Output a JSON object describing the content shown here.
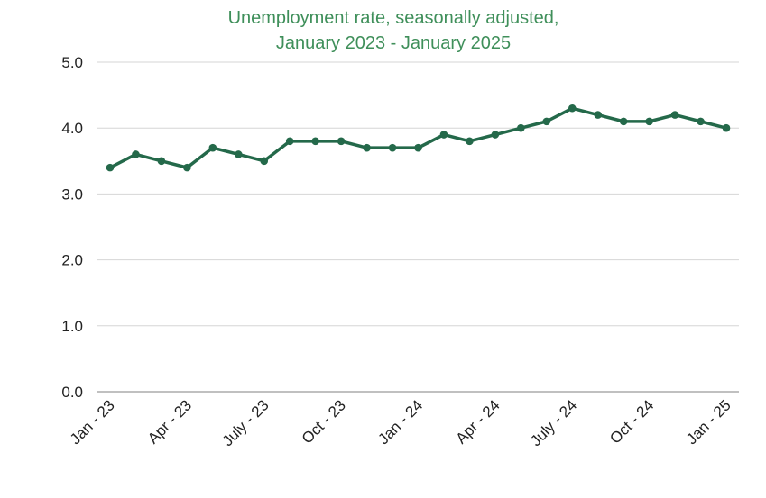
{
  "chart_data": {
    "type": "line",
    "title": "Unemployment rate, seasonally adjusted,",
    "subtitle": "January 2023 - January 2025",
    "xlabel": "",
    "ylabel": "",
    "ylim": [
      0,
      5
    ],
    "yticks": [
      "0.0",
      "1.0",
      "2.0",
      "3.0",
      "4.0",
      "5.0"
    ],
    "grid": true,
    "color": "#24694a",
    "x": [
      "Jan 2023",
      "Feb 2023",
      "Mar 2023",
      "Apr 2023",
      "May 2023",
      "Jun 2023",
      "Jul 2023",
      "Aug 2023",
      "Sep 2023",
      "Oct 2023",
      "Nov 2023",
      "Dec 2023",
      "Jan 2024",
      "Feb 2024",
      "Mar 2024",
      "Apr 2024",
      "May 2024",
      "Jun 2024",
      "Jul 2024",
      "Aug 2024",
      "Sep 2024",
      "Oct 2024",
      "Nov 2024",
      "Dec 2024",
      "Jan 2025"
    ],
    "x_tick_labels": [
      {
        "index": 0,
        "label": "Jan - 23"
      },
      {
        "index": 3,
        "label": "Apr - 23"
      },
      {
        "index": 6,
        "label": "July - 23"
      },
      {
        "index": 9,
        "label": "Oct - 23"
      },
      {
        "index": 12,
        "label": "Jan - 24"
      },
      {
        "index": 15,
        "label": "Apr - 24"
      },
      {
        "index": 18,
        "label": "July - 24"
      },
      {
        "index": 21,
        "label": "Oct - 24"
      },
      {
        "index": 24,
        "label": "Jan - 25"
      }
    ],
    "values": [
      3.4,
      3.6,
      3.5,
      3.4,
      3.7,
      3.6,
      3.5,
      3.8,
      3.8,
      3.8,
      3.7,
      3.7,
      3.7,
      3.9,
      3.8,
      3.9,
      4.0,
      4.1,
      4.3,
      4.2,
      4.1,
      4.1,
      4.2,
      4.1,
      4.0
    ]
  }
}
